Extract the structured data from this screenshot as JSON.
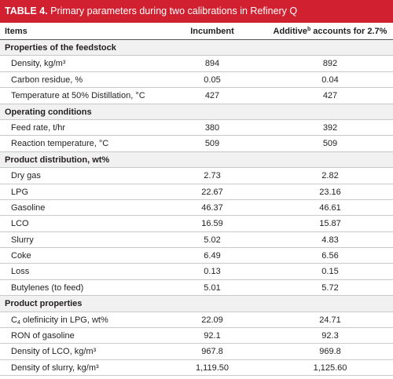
{
  "header": {
    "label": "TABLE 4.",
    "title": "Primary parameters during two calibrations in Refinery Q"
  },
  "table": {
    "columns": [
      "Items",
      "Incumbent",
      {
        "main": "Additive",
        "sup": "b",
        "rest": " accounts for 2.7%"
      }
    ],
    "sections": [
      {
        "title": "Properties of the feedstock",
        "rows": [
          [
            "Density, kg/m³",
            "894",
            "892"
          ],
          [
            "Carbon residue, %",
            "0.05",
            "0.04"
          ],
          [
            "Temperature at 50% Distillation, °C",
            "427",
            "427"
          ]
        ]
      },
      {
        "title": "Operating conditions",
        "rows": [
          [
            "Feed rate, t/hr",
            "380",
            "392"
          ],
          [
            "Reaction temperature, °C",
            "509",
            "509"
          ]
        ]
      },
      {
        "title": "Product distribution, wt%",
        "rows": [
          [
            "Dry gas",
            "2.73",
            "2.82"
          ],
          [
            "LPG",
            "22.67",
            "23.16"
          ],
          [
            "Gasoline",
            "46.37",
            "46.61"
          ],
          [
            "LCO",
            "16.59",
            "15.87"
          ],
          [
            "Slurry",
            "5.02",
            "4.83"
          ],
          [
            "Coke",
            "6.49",
            "6.56"
          ],
          [
            "Loss",
            "0.13",
            "0.15"
          ],
          [
            "Butylenes (to feed)",
            "5.01",
            "5.72"
          ]
        ]
      },
      {
        "title": "Product properties",
        "rows": [
          [
            {
              "main": "C",
              "sub": "4",
              "rest": " olefinicity in LPG, wt%"
            },
            "22.09",
            "24.71"
          ],
          [
            "RON of gasoline",
            "92.1",
            "92.3"
          ],
          [
            "Density of LCO, kg/m³",
            "967.8",
            "969.8"
          ],
          [
            "Density of slurry, kg/m³",
            "1,119.50",
            "1,125.60"
          ]
        ]
      }
    ]
  }
}
